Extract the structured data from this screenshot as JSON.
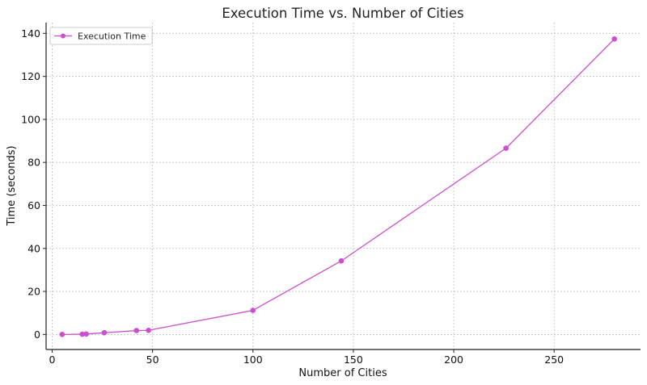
{
  "chart_data": {
    "type": "line",
    "title": "Execution Time vs. Number of Cities",
    "xlabel": "Number of Cities",
    "ylabel": "Time (seconds)",
    "xlim": [
      -3,
      293
    ],
    "ylim": [
      -7,
      145
    ],
    "xticks": [
      0,
      50,
      100,
      150,
      200,
      250
    ],
    "yticks": [
      0,
      20,
      40,
      60,
      80,
      100,
      120,
      140
    ],
    "grid": true,
    "legend_position": "top-left",
    "series": [
      {
        "name": "Execution Time",
        "color": "#cc4fcf",
        "marker": "circle",
        "x": [
          5,
          15,
          17,
          26,
          42,
          48,
          100,
          144,
          226,
          280
        ],
        "y": [
          0.0,
          0.1,
          0.2,
          0.8,
          1.8,
          1.9,
          11.2,
          34.2,
          86.6,
          137.4
        ]
      }
    ]
  }
}
